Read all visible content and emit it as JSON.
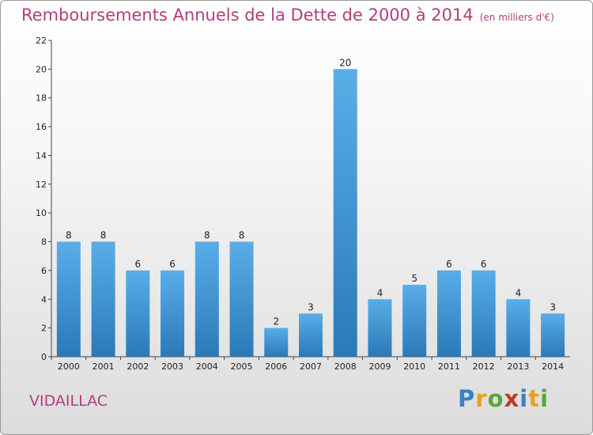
{
  "title": "Remboursements Annuels de la Dette de 2000 à 2014",
  "unit": "(en milliers d'€)",
  "place": "VIDAILLAC",
  "logo": "Proxiti",
  "chart_data": {
    "type": "bar",
    "title": "Remboursements Annuels de la Dette de 2000 à 2014",
    "subtitle": "(en milliers d'€)",
    "xlabel": "",
    "ylabel": "",
    "categories": [
      "2000",
      "2001",
      "2002",
      "2003",
      "2004",
      "2005",
      "2006",
      "2007",
      "2008",
      "2009",
      "2010",
      "2011",
      "2012",
      "2013",
      "2014"
    ],
    "values": [
      8,
      8,
      6,
      6,
      8,
      8,
      2,
      3,
      20,
      4,
      5,
      6,
      6,
      4,
      3
    ],
    "ylim": [
      0,
      22
    ],
    "yticks": [
      0,
      2,
      4,
      6,
      8,
      10,
      12,
      14,
      16,
      18,
      20,
      22
    ],
    "grid": false,
    "legend": "none",
    "colors": {
      "bar_top": "#5aaee8",
      "bar_bottom": "#2a79b8",
      "title": "#b03f7a"
    }
  }
}
